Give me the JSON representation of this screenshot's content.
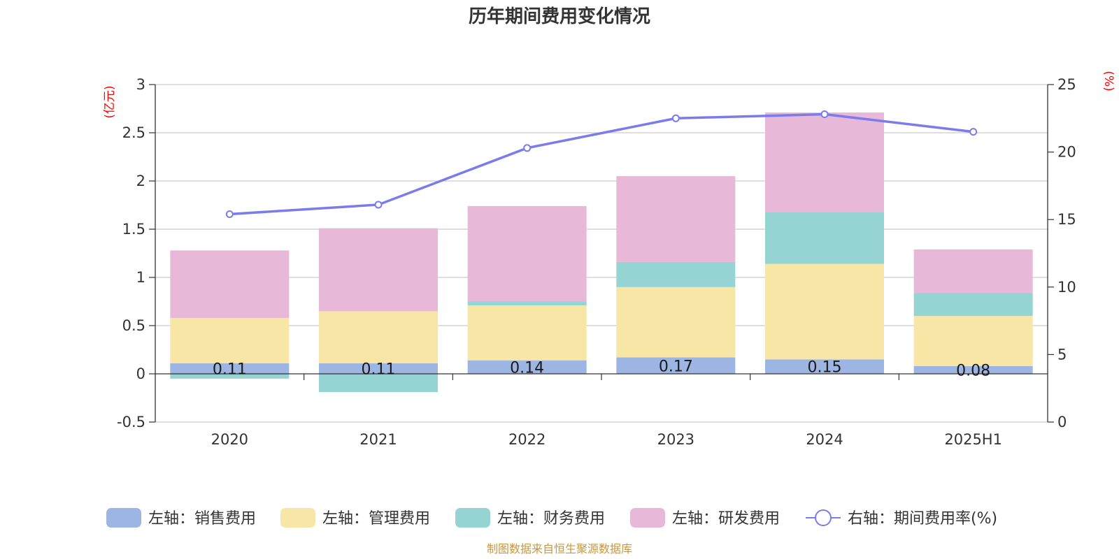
{
  "chart_data": {
    "type": "bar",
    "stacked": true,
    "title": "历年期间费用变化情况",
    "left_unit": "(亿元)",
    "right_unit": "(%)",
    "categories": [
      "2020",
      "2021",
      "2022",
      "2023",
      "2024",
      "2025H1"
    ],
    "left_axis": {
      "min": -0.5,
      "max": 3,
      "ticks": [
        "-0.5",
        "0",
        "0.5",
        "1",
        "1.5",
        "2",
        "2.5",
        "3"
      ]
    },
    "right_axis": {
      "min": 0,
      "max": 25,
      "ticks": [
        "0",
        "5",
        "10",
        "15",
        "20",
        "25"
      ]
    },
    "grid": true,
    "series": [
      {
        "name": "左轴：销售费用",
        "color": "#9db5e2",
        "values": [
          0.11,
          0.11,
          0.14,
          0.17,
          0.15,
          0.08
        ],
        "labels": [
          "0.11",
          "0.11",
          "0.14",
          "0.17",
          "0.15",
          "0.08"
        ]
      },
      {
        "name": "左轴：管理费用",
        "color": "#f8e6a6",
        "values": [
          0.47,
          0.54,
          0.57,
          0.73,
          0.99,
          0.52
        ]
      },
      {
        "name": "左轴：财务费用",
        "color": "#96d4d4",
        "values": [
          -0.05,
          -0.19,
          0.04,
          0.26,
          0.54,
          0.24
        ]
      },
      {
        "name": "左轴：研发费用",
        "color": "#e8b8d8",
        "values": [
          0.7,
          0.86,
          0.99,
          0.89,
          1.03,
          0.45
        ]
      }
    ],
    "line_series": {
      "name": "右轴：期间费用率(%)",
      "color": "#7b7ceb",
      "values": [
        15.4,
        16.1,
        20.3,
        22.5,
        22.8,
        21.5
      ]
    },
    "legend_position": "bottom",
    "source": "制图数据来自恒生聚源数据库"
  }
}
